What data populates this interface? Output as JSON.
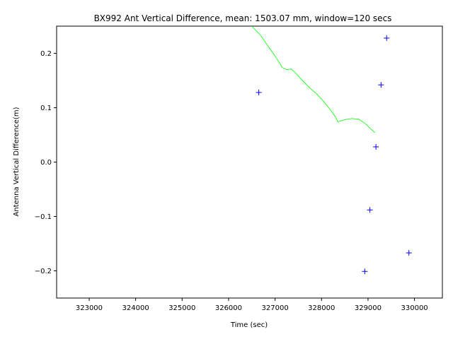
{
  "chart_data": {
    "type": "scatter",
    "title": "BX992 Ant Vertical Difference, mean: 1503.07 mm, window=120 secs",
    "xlabel": "Time (sec)",
    "ylabel": "Antenna Vertical Difference(m)",
    "xlim": [
      322300,
      330600
    ],
    "ylim": [
      -0.25,
      0.25
    ],
    "x_ticks": [
      323000,
      324000,
      325000,
      326000,
      327000,
      328000,
      329000,
      330000
    ],
    "y_ticks": [
      -0.2,
      -0.1,
      0.0,
      0.1,
      0.2
    ],
    "x_tick_labels": [
      "323000",
      "324000",
      "325000",
      "326000",
      "327000",
      "328000",
      "329000",
      "330000"
    ],
    "y_tick_labels": [
      "−0.2",
      "−0.1",
      "0.0",
      "0.1",
      "0.2"
    ],
    "grid": false,
    "series": [
      {
        "type": "scatter",
        "marker": "plus",
        "color": "#0000ff",
        "points": [
          {
            "x": 326650,
            "y": 0.128
          },
          {
            "x": 328930,
            "y": -0.201
          },
          {
            "x": 329040,
            "y": -0.088
          },
          {
            "x": 329170,
            "y": 0.028
          },
          {
            "x": 329280,
            "y": 0.142
          },
          {
            "x": 329400,
            "y": 0.228
          },
          {
            "x": 329880,
            "y": -0.167
          }
        ]
      },
      {
        "type": "line",
        "color": "#00ff00",
        "points": [
          {
            "x": 326500,
            "y": 0.25
          },
          {
            "x": 326700,
            "y": 0.232
          },
          {
            "x": 326850,
            "y": 0.213
          },
          {
            "x": 327000,
            "y": 0.195
          },
          {
            "x": 327100,
            "y": 0.182
          },
          {
            "x": 327150,
            "y": 0.174
          },
          {
            "x": 327250,
            "y": 0.17
          },
          {
            "x": 327350,
            "y": 0.171
          },
          {
            "x": 327450,
            "y": 0.163
          },
          {
            "x": 327600,
            "y": 0.149
          },
          {
            "x": 327750,
            "y": 0.136
          },
          {
            "x": 327900,
            "y": 0.125
          },
          {
            "x": 328050,
            "y": 0.111
          },
          {
            "x": 328200,
            "y": 0.095
          },
          {
            "x": 328300,
            "y": 0.083
          },
          {
            "x": 328350,
            "y": 0.074
          },
          {
            "x": 328500,
            "y": 0.078
          },
          {
            "x": 328650,
            "y": 0.08
          },
          {
            "x": 328800,
            "y": 0.079
          },
          {
            "x": 328950,
            "y": 0.07
          },
          {
            "x": 329050,
            "y": 0.062
          },
          {
            "x": 329150,
            "y": 0.054
          }
        ]
      }
    ]
  }
}
